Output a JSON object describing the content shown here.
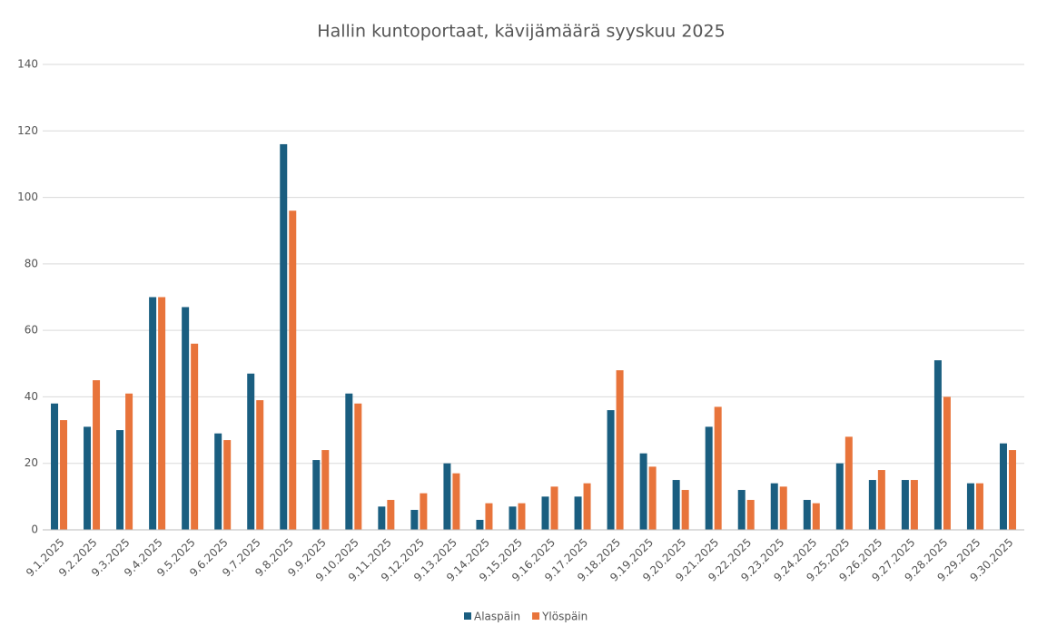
{
  "chart_data": {
    "type": "bar",
    "title": "Hallin kuntoportaat, kävijämäärä syyskuu 2025",
    "categories": [
      "9.1.2025",
      "9.2.2025",
      "9.3.2025",
      "9.4.2025",
      "9.5.2025",
      "9.6.2025",
      "9.7.2025",
      "9.8.2025",
      "9.9.2025",
      "9.10.2025",
      "9.11.2025",
      "9.12.2025",
      "9.13.2025",
      "9.14.2025",
      "9.15.2025",
      "9.16.2025",
      "9.17.2025",
      "9.18.2025",
      "9.19.2025",
      "9.20.2025",
      "9.21.2025",
      "9.22.2025",
      "9.23.2025",
      "9.24.2025",
      "9.25.2025",
      "9.26.2025",
      "9.27.2025",
      "9.28.2025",
      "9.29.2025",
      "9.30.2025"
    ],
    "series": [
      {
        "name": "Alaspäin",
        "color": "#1a5e80",
        "values": [
          38,
          31,
          30,
          70,
          67,
          29,
          47,
          116,
          21,
          41,
          7,
          6,
          20,
          3,
          7,
          10,
          10,
          36,
          23,
          15,
          31,
          12,
          14,
          9,
          20,
          15,
          15,
          51,
          14,
          26
        ]
      },
      {
        "name": "Ylöspäin",
        "color": "#e8743b",
        "values": [
          33,
          45,
          41,
          70,
          56,
          27,
          39,
          96,
          24,
          38,
          9,
          11,
          17,
          8,
          8,
          13,
          14,
          48,
          19,
          12,
          37,
          9,
          13,
          8,
          28,
          18,
          15,
          40,
          14,
          24
        ]
      }
    ],
    "ylim": [
      0,
      140
    ],
    "yticks": [
      0,
      20,
      40,
      60,
      80,
      100,
      120,
      140
    ],
    "grid": true,
    "legend": "bottom"
  }
}
